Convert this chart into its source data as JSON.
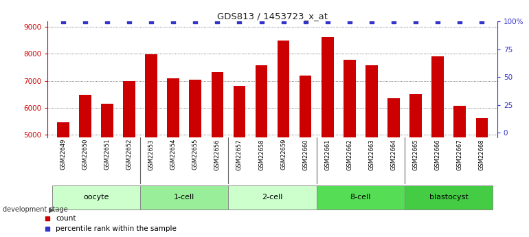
{
  "title": "GDS813 / 1453723_x_at",
  "categories": [
    "GSM22649",
    "GSM22650",
    "GSM22651",
    "GSM22652",
    "GSM22653",
    "GSM22654",
    "GSM22655",
    "GSM22656",
    "GSM22657",
    "GSM22658",
    "GSM22659",
    "GSM22660",
    "GSM22661",
    "GSM22662",
    "GSM22663",
    "GSM22664",
    "GSM22665",
    "GSM22666",
    "GSM22667",
    "GSM22668"
  ],
  "count_values": [
    5450,
    6480,
    6150,
    7000,
    7980,
    7100,
    7050,
    7320,
    6820,
    7580,
    8490,
    7190,
    8620,
    7780,
    7580,
    6340,
    6500,
    7900,
    6080,
    5620
  ],
  "percentile_values": [
    100,
    100,
    100,
    100,
    100,
    100,
    100,
    100,
    100,
    100,
    100,
    100,
    100,
    100,
    100,
    100,
    100,
    100,
    100,
    100
  ],
  "bar_color": "#cc0000",
  "dot_color": "#3333cc",
  "ylim_left": [
    4900,
    9200
  ],
  "ylim_right": [
    -4.35,
    100
  ],
  "yticks_left": [
    5000,
    6000,
    7000,
    8000,
    9000
  ],
  "yticks_right": [
    0,
    25,
    50,
    75,
    100
  ],
  "ytick_labels_right": [
    "0",
    "25",
    "50",
    "75",
    "100%"
  ],
  "groups": [
    {
      "label": "oocyte",
      "start": 0,
      "end": 3,
      "color": "#ccffcc"
    },
    {
      "label": "1-cell",
      "start": 4,
      "end": 7,
      "color": "#99ee99"
    },
    {
      "label": "2-cell",
      "start": 8,
      "end": 11,
      "color": "#ccffcc"
    },
    {
      "label": "8-cell",
      "start": 12,
      "end": 15,
      "color": "#55dd55"
    },
    {
      "label": "blastocyst",
      "start": 16,
      "end": 19,
      "color": "#44cc44"
    }
  ],
  "xtick_bg_color": "#cccccc",
  "dev_stage_label": "development stage",
  "legend_count_label": "count",
  "legend_percentile_label": "percentile rank within the sample",
  "left_axis_color": "#cc0000",
  "right_axis_color": "#3333cc",
  "grid_color": "#444444"
}
